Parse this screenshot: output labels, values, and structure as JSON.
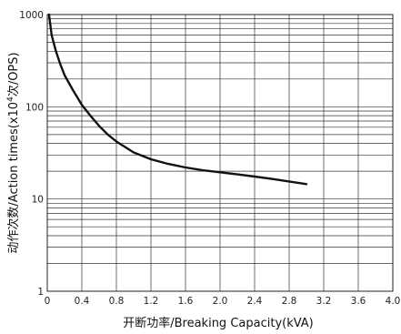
{
  "chart_data": {
    "type": "line",
    "xlabel": "开断功率/Breaking Capacity(kVA)",
    "ylabel_prefix": "动作次数/Action times(x10",
    "ylabel_exp": "4",
    "ylabel_suffix": "次/OPS)",
    "x_scale": "linear",
    "y_scale": "log",
    "xlim": [
      0,
      4.0
    ],
    "ylim": [
      1,
      1000
    ],
    "grid": true,
    "x_ticks": [
      "0",
      "0.4",
      "0.8",
      "1.2",
      "1.6",
      "2.0",
      "2.4",
      "2.8",
      "3.2",
      "3.6",
      "4.0"
    ],
    "y_ticks": [
      "1",
      "10",
      "100",
      "1000"
    ],
    "series": [
      {
        "x": [
          0.02,
          0.05,
          0.1,
          0.15,
          0.2,
          0.3,
          0.4,
          0.5,
          0.6,
          0.7,
          0.8,
          1.0,
          1.2,
          1.4,
          1.6,
          1.8,
          2.0,
          2.2,
          2.4,
          2.6,
          2.8,
          3.0
        ],
        "y": [
          1000,
          600,
          400,
          290,
          220,
          150,
          105,
          80,
          62,
          50,
          42,
          32,
          27,
          24,
          22,
          20.5,
          19.5,
          18.5,
          17.5,
          16.5,
          15.5,
          14.5
        ]
      }
    ]
  }
}
